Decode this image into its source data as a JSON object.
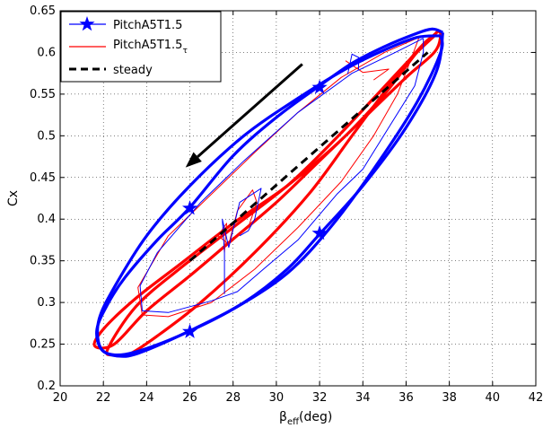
{
  "chart_data": {
    "type": "line",
    "title": "",
    "xlabel": "β",
    "xlabel_sub": "eff",
    "xlabel_unit": "(deg)",
    "ylabel": "Cx",
    "xlim": [
      20,
      42
    ],
    "ylim": [
      0.2,
      0.65
    ],
    "x_ticks": [
      20,
      22,
      24,
      26,
      28,
      30,
      32,
      34,
      36,
      38,
      40,
      42
    ],
    "y_ticks": [
      0.2,
      0.25,
      0.3,
      0.35,
      0.4,
      0.45,
      0.5,
      0.55,
      0.6,
      0.65
    ],
    "grid": true,
    "legend_position": "top-left",
    "series": [
      {
        "name": "PitchA5T1.5",
        "color": "#0000ff",
        "marker": "star",
        "style": "solid",
        "loops": [
          {
            "weight": "thick",
            "points": [
              [
                37.7,
                0.624
              ],
              [
                37.2,
                0.628
              ],
              [
                36.4,
                0.622
              ],
              [
                35,
                0.607
              ],
              [
                33.5,
                0.587
              ],
              [
                32,
                0.56
              ],
              [
                30,
                0.522
              ],
              [
                28,
                0.476
              ],
              [
                26,
                0.414
              ],
              [
                24.5,
                0.375
              ],
              [
                23,
                0.33
              ],
              [
                22.2,
                0.298
              ],
              [
                21.7,
                0.268
              ],
              [
                21.9,
                0.244
              ],
              [
                22.6,
                0.236
              ],
              [
                23.6,
                0.239
              ],
              [
                26,
                0.266
              ],
              [
                28.5,
                0.3
              ],
              [
                30.5,
                0.34
              ],
              [
                32,
                0.382
              ],
              [
                34,
                0.44
              ],
              [
                36,
                0.51
              ],
              [
                37.4,
                0.577
              ],
              [
                37.7,
                0.624
              ]
            ]
          },
          {
            "weight": "thick",
            "points": [
              [
                37.6,
                0.62
              ],
              [
                36.5,
                0.618
              ],
              [
                35,
                0.603
              ],
              [
                33.2,
                0.58
              ],
              [
                31,
                0.545
              ],
              [
                28.5,
                0.5
              ],
              [
                26,
                0.44
              ],
              [
                24,
                0.38
              ],
              [
                22.5,
                0.318
              ],
              [
                21.8,
                0.28
              ],
              [
                21.8,
                0.25
              ],
              [
                22.3,
                0.238
              ],
              [
                23.4,
                0.24
              ],
              [
                25.5,
                0.26
              ],
              [
                28,
                0.292
              ],
              [
                30.5,
                0.335
              ],
              [
                32.5,
                0.39
              ],
              [
                34.5,
                0.46
              ],
              [
                36.5,
                0.54
              ],
              [
                37.6,
                0.6
              ],
              [
                37.6,
                0.62
              ]
            ]
          },
          {
            "weight": "thin",
            "points": [
              [
                36.8,
                0.617
              ],
              [
                35.5,
                0.6
              ],
              [
                33.5,
                0.575
              ],
              [
                31,
                0.528
              ],
              [
                28.5,
                0.47
              ],
              [
                26.5,
                0.42
              ],
              [
                24.5,
                0.36
              ],
              [
                23.7,
                0.32
              ],
              [
                23.8,
                0.29
              ],
              [
                25,
                0.288
              ],
              [
                27,
                0.302
              ],
              [
                28.2,
                0.313
              ],
              [
                29.4,
                0.34
              ],
              [
                31,
                0.375
              ],
              [
                32.8,
                0.43
              ],
              [
                34,
                0.46
              ],
              [
                35.2,
                0.51
              ],
              [
                36.4,
                0.56
              ],
              [
                36.8,
                0.6
              ],
              [
                36.8,
                0.617
              ]
            ]
          },
          {
            "weight": "thin",
            "points": [
              [
                27.6,
                0.31
              ],
              [
                27.6,
                0.36
              ],
              [
                27.5,
                0.4
              ],
              [
                27.8,
                0.366
              ],
              [
                28.3,
                0.42
              ],
              [
                29.3,
                0.437
              ],
              [
                29,
                0.4
              ],
              [
                28.7,
                0.386
              ],
              [
                28.3,
                0.38
              ]
            ]
          },
          {
            "weight": "thin",
            "points": [
              [
                33.3,
                0.574
              ],
              [
                33.5,
                0.598
              ],
              [
                33.8,
                0.594
              ],
              [
                33.8,
                0.58
              ]
            ]
          }
        ],
        "markers": [
          [
            32,
            0.558
          ],
          [
            26,
            0.413
          ],
          [
            26,
            0.265
          ],
          [
            32,
            0.383
          ]
        ]
      },
      {
        "name": "PitchA5T1.5",
        "name_sub": "τ",
        "color": "#ff0000",
        "marker": "none",
        "style": "solid",
        "loops": [
          {
            "weight": "thick",
            "points": [
              [
                37.5,
                0.626
              ],
              [
                37.6,
                0.62
              ],
              [
                37.3,
                0.6
              ],
              [
                36,
                0.57
              ],
              [
                34,
                0.52
              ],
              [
                32,
                0.47
              ],
              [
                30,
                0.42
              ],
              [
                28,
                0.376
              ],
              [
                26,
                0.332
              ],
              [
                24,
                0.29
              ],
              [
                22.5,
                0.25
              ],
              [
                21.6,
                0.248
              ],
              [
                22,
                0.268
              ],
              [
                23.5,
                0.305
              ],
              [
                25.5,
                0.345
              ],
              [
                28,
                0.395
              ],
              [
                30.5,
                0.44
              ],
              [
                33,
                0.495
              ],
              [
                35,
                0.55
              ],
              [
                36.5,
                0.6
              ],
              [
                37.5,
                0.626
              ]
            ]
          },
          {
            "weight": "thick",
            "points": [
              [
                37.4,
                0.622
              ],
              [
                36.3,
                0.595
              ],
              [
                34.5,
                0.545
              ],
              [
                32.5,
                0.49
              ],
              [
                30.5,
                0.44
              ],
              [
                28,
                0.39
              ],
              [
                25.5,
                0.34
              ],
              [
                23.5,
                0.295
              ],
              [
                22.2,
                0.244
              ],
              [
                22.5,
                0.237
              ],
              [
                23.2,
                0.238
              ],
              [
                24.5,
                0.26
              ],
              [
                26.5,
                0.3
              ],
              [
                29,
                0.36
              ],
              [
                31.5,
                0.43
              ],
              [
                33.5,
                0.5
              ],
              [
                35.5,
                0.57
              ],
              [
                36.8,
                0.61
              ],
              [
                37.4,
                0.622
              ]
            ]
          },
          {
            "weight": "thin",
            "points": [
              [
                36.6,
                0.618
              ],
              [
                35,
                0.6
              ],
              [
                33,
                0.57
              ],
              [
                31,
                0.528
              ],
              [
                29,
                0.48
              ],
              [
                27,
                0.43
              ],
              [
                25,
                0.38
              ],
              [
                23.6,
                0.318
              ],
              [
                23.8,
                0.285
              ],
              [
                25,
                0.283
              ],
              [
                27,
                0.3
              ],
              [
                29,
                0.34
              ],
              [
                31,
                0.39
              ],
              [
                33,
                0.445
              ],
              [
                34.5,
                0.5
              ],
              [
                35.6,
                0.55
              ],
              [
                36.2,
                0.59
              ],
              [
                36.6,
                0.618
              ]
            ]
          },
          {
            "weight": "thin",
            "points": [
              [
                27.6,
                0.36
              ],
              [
                27.7,
                0.395
              ],
              [
                27.3,
                0.38
              ],
              [
                27.8,
                0.37
              ],
              [
                28.2,
                0.41
              ],
              [
                28.9,
                0.435
              ],
              [
                29.1,
                0.42
              ],
              [
                28.7,
                0.39
              ]
            ]
          },
          {
            "weight": "thin",
            "points": [
              [
                33.2,
                0.59
              ],
              [
                34,
                0.576
              ],
              [
                35.2,
                0.58
              ],
              [
                34.5,
                0.567
              ]
            ]
          }
        ]
      },
      {
        "name": "steady",
        "color": "#000000",
        "marker": "none",
        "style": "dashed",
        "points": [
          [
            26,
            0.35
          ],
          [
            37,
            0.6
          ]
        ]
      }
    ],
    "annotation_arrow": {
      "from": [
        31.2,
        0.586
      ],
      "to": [
        25.8,
        0.462
      ]
    }
  }
}
